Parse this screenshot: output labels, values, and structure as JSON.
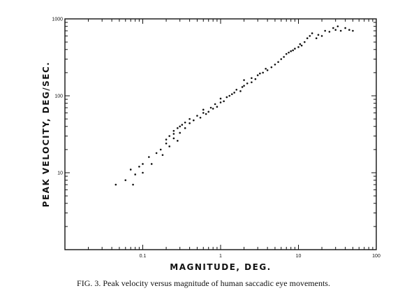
{
  "caption": "FIG. 3.   Peak velocity versus magnitude of human saccadic eye movements.",
  "chart_data": {
    "type": "scatter",
    "title": "",
    "xlabel": "MAGNITUDE, DEG.",
    "ylabel": "PEAK VELOCITY, DEG/SEC.",
    "x_scale": "log",
    "y_scale": "log",
    "xlim": [
      0.01,
      100
    ],
    "ylim": [
      1,
      1000
    ],
    "x_tick_labels": [
      "0.1",
      "1",
      "10",
      "100"
    ],
    "y_tick_labels": [
      "10",
      "100",
      "1000"
    ],
    "grid": false,
    "marker_color": "#111111",
    "series": [
      {
        "points": [
          [
            0.045,
            7
          ],
          [
            0.06,
            8
          ],
          [
            0.07,
            11
          ],
          [
            0.075,
            7
          ],
          [
            0.08,
            9.5
          ],
          [
            0.09,
            12
          ],
          [
            0.1,
            10
          ],
          [
            0.1,
            13
          ],
          [
            0.12,
            16
          ],
          [
            0.13,
            13
          ],
          [
            0.15,
            18
          ],
          [
            0.17,
            20
          ],
          [
            0.18,
            17
          ],
          [
            0.2,
            24
          ],
          [
            0.2,
            27
          ],
          [
            0.22,
            22
          ],
          [
            0.22,
            30
          ],
          [
            0.25,
            28
          ],
          [
            0.25,
            32
          ],
          [
            0.25,
            35
          ],
          [
            0.28,
            26
          ],
          [
            0.28,
            38
          ],
          [
            0.3,
            33
          ],
          [
            0.3,
            40
          ],
          [
            0.32,
            42
          ],
          [
            0.35,
            38
          ],
          [
            0.35,
            45
          ],
          [
            0.4,
            44
          ],
          [
            0.4,
            50
          ],
          [
            0.45,
            48
          ],
          [
            0.5,
            55
          ],
          [
            0.55,
            52
          ],
          [
            0.6,
            60
          ],
          [
            0.6,
            66
          ],
          [
            0.65,
            58
          ],
          [
            0.7,
            62
          ],
          [
            0.75,
            70
          ],
          [
            0.8,
            68
          ],
          [
            0.85,
            78
          ],
          [
            0.9,
            72
          ],
          [
            1.0,
            82
          ],
          [
            1.0,
            92
          ],
          [
            1.1,
            85
          ],
          [
            1.2,
            96
          ],
          [
            1.3,
            100
          ],
          [
            1.4,
            105
          ],
          [
            1.5,
            110
          ],
          [
            1.6,
            120
          ],
          [
            1.8,
            115
          ],
          [
            1.9,
            130
          ],
          [
            2.0,
            135
          ],
          [
            2.0,
            160
          ],
          [
            2.2,
            145
          ],
          [
            2.5,
            150
          ],
          [
            2.5,
            170
          ],
          [
            2.8,
            165
          ],
          [
            3.0,
            185
          ],
          [
            3.2,
            195
          ],
          [
            3.5,
            200
          ],
          [
            3.8,
            225
          ],
          [
            4.0,
            215
          ],
          [
            4.5,
            235
          ],
          [
            5.0,
            255
          ],
          [
            5.5,
            275
          ],
          [
            6.0,
            300
          ],
          [
            6.5,
            320
          ],
          [
            7.0,
            350
          ],
          [
            7.5,
            365
          ],
          [
            8.0,
            380
          ],
          [
            8.5,
            390
          ],
          [
            9.0,
            410
          ],
          [
            10.0,
            430
          ],
          [
            10.5,
            470
          ],
          [
            11.0,
            450
          ],
          [
            12.0,
            500
          ],
          [
            13.0,
            560
          ],
          [
            14.0,
            600
          ],
          [
            15.0,
            650
          ],
          [
            17.0,
            560
          ],
          [
            18.0,
            620
          ],
          [
            20.0,
            600
          ],
          [
            22.0,
            700
          ],
          [
            25.0,
            680
          ],
          [
            28.0,
            760
          ],
          [
            30.0,
            720
          ],
          [
            32.0,
            800
          ],
          [
            35.0,
            700
          ],
          [
            40.0,
            760
          ],
          [
            45.0,
            720
          ],
          [
            50.0,
            700
          ]
        ]
      }
    ]
  }
}
